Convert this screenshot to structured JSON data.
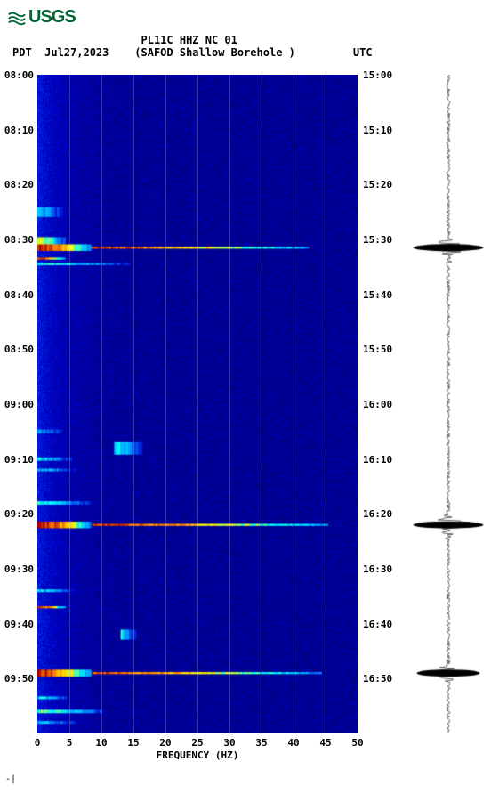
{
  "logo": {
    "text": "USGS",
    "color": "#006633"
  },
  "header": {
    "title1_prefix": "PDT  Jul27,2023",
    "station": "PL11C HHZ NC 01",
    "location": "(SAFOD Shallow Borehole )",
    "tz_right": "UTC"
  },
  "chart": {
    "type": "spectrogram",
    "background_color": "#ffffff",
    "base_color": "#000088",
    "gridline_color": "rgba(200,200,255,0.25)",
    "xlabel": "FREQUENCY (HZ)",
    "xlim": [
      0,
      50
    ],
    "xtick_step": 5,
    "xticks": [
      "0",
      "5",
      "10",
      "15",
      "20",
      "25",
      "30",
      "35",
      "40",
      "45",
      "50"
    ],
    "time_start_pdt": "08:00",
    "time_end_pdt": "09:59",
    "time_start_utc": "15:00",
    "time_end_utc": "16:59",
    "ytick_step_minutes": 10,
    "yticks_left": [
      "08:00",
      "08:10",
      "08:20",
      "08:30",
      "08:40",
      "08:50",
      "09:00",
      "09:10",
      "09:20",
      "09:30",
      "09:40",
      "09:50"
    ],
    "yticks_right": [
      "15:00",
      "15:10",
      "15:20",
      "15:30",
      "15:40",
      "15:50",
      "16:00",
      "16:10",
      "16:20",
      "16:30",
      "16:40",
      "16:50"
    ],
    "colormap": {
      "stops": [
        {
          "val": 0.0,
          "color": "#000044"
        },
        {
          "val": 0.2,
          "color": "#0000cc"
        },
        {
          "val": 0.4,
          "color": "#0088ff"
        },
        {
          "val": 0.55,
          "color": "#00ffff"
        },
        {
          "val": 0.7,
          "color": "#ffff00"
        },
        {
          "val": 0.85,
          "color": "#ff8800"
        },
        {
          "val": 1.0,
          "color": "#aa0000"
        }
      ]
    },
    "events": [
      {
        "time_pdt": "08:25",
        "freq_range": [
          0,
          4
        ],
        "intensity": 0.45,
        "width": 0.015
      },
      {
        "time_pdt": "08:30.5",
        "freq_range": [
          0,
          4
        ],
        "intensity": 0.7,
        "width": 0.015
      },
      {
        "time_pdt": "08:31.5",
        "freq_range": [
          0,
          42
        ],
        "intensity": 0.98,
        "width": 0.003
      },
      {
        "time_pdt": "08:31.5",
        "freq_range": [
          0,
          8
        ],
        "intensity": 0.98,
        "width": 0.01
      },
      {
        "time_pdt": "08:33.5",
        "freq_range": [
          0,
          4
        ],
        "intensity": 0.95,
        "width": 0.003
      },
      {
        "time_pdt": "08:34.5",
        "freq_range": [
          0,
          14
        ],
        "intensity": 0.55,
        "width": 0.003
      },
      {
        "time_pdt": "09:05",
        "freq_range": [
          0,
          4
        ],
        "intensity": 0.4,
        "width": 0.006
      },
      {
        "time_pdt": "09:08",
        "freq_range": [
          12,
          16
        ],
        "intensity": 0.5,
        "width": 0.02
      },
      {
        "time_pdt": "09:10",
        "freq_range": [
          0,
          5
        ],
        "intensity": 0.5,
        "width": 0.005
      },
      {
        "time_pdt": "09:12",
        "freq_range": [
          0,
          6
        ],
        "intensity": 0.45,
        "width": 0.004
      },
      {
        "time_pdt": "09:18",
        "freq_range": [
          0,
          8
        ],
        "intensity": 0.55,
        "width": 0.005
      },
      {
        "time_pdt": "09:22",
        "freq_range": [
          0,
          45
        ],
        "intensity": 0.98,
        "width": 0.003
      },
      {
        "time_pdt": "09:22",
        "freq_range": [
          0,
          8
        ],
        "intensity": 0.98,
        "width": 0.01
      },
      {
        "time_pdt": "09:34",
        "freq_range": [
          0,
          6
        ],
        "intensity": 0.5,
        "width": 0.004
      },
      {
        "time_pdt": "09:37",
        "freq_range": [
          0,
          4
        ],
        "intensity": 0.95,
        "width": 0.003
      },
      {
        "time_pdt": "09:42",
        "freq_range": [
          13,
          15
        ],
        "intensity": 0.5,
        "width": 0.015
      },
      {
        "time_pdt": "09:49",
        "freq_range": [
          0,
          44
        ],
        "intensity": 0.95,
        "width": 0.003
      },
      {
        "time_pdt": "09:49",
        "freq_range": [
          0,
          8
        ],
        "intensity": 0.95,
        "width": 0.01
      },
      {
        "time_pdt": "09:53.5",
        "freq_range": [
          0,
          5
        ],
        "intensity": 0.5,
        "width": 0.004
      },
      {
        "time_pdt": "09:56",
        "freq_range": [
          0,
          10
        ],
        "intensity": 0.6,
        "width": 0.005
      },
      {
        "time_pdt": "09:58",
        "freq_range": [
          0,
          6
        ],
        "intensity": 0.45,
        "width": 0.004
      }
    ],
    "seismogram": {
      "baseline_color": "#000000",
      "big_spikes": [
        {
          "time_pdt": "08:31.5",
          "amplitude": 1.0
        },
        {
          "time_pdt": "09:22",
          "amplitude": 1.0
        },
        {
          "time_pdt": "09:49",
          "amplitude": 0.9
        }
      ],
      "noise_level": 0.05
    }
  },
  "footer_mark": "-|"
}
